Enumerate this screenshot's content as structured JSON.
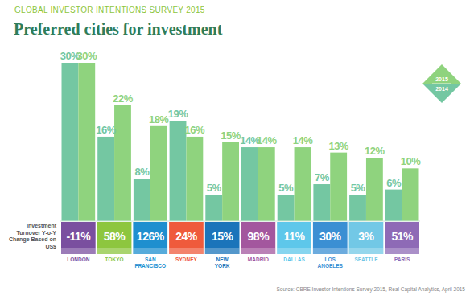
{
  "chart_data": {
    "type": "bar",
    "title": "Preferred cities for investment",
    "subtitle": "GLOBAL INVESTOR INTENTIONS SURVEY 2015",
    "source": "Source: CBRE Investor Intentions Survey 2015, Real Capital Analytics, April 2015",
    "categories": [
      "LONDON",
      "TOKYO",
      "SAN FRANCISCO",
      "SYDNEY",
      "NEW YORK",
      "MADRID",
      "DALLAS",
      "LOS ANGELES",
      "SEATTLE",
      "PARIS"
    ],
    "series": [
      {
        "name": "2014",
        "color": "#74c7a2",
        "values": [
          30,
          16,
          8,
          19,
          5,
          14,
          5,
          7,
          5,
          6
        ],
        "value_labels": [
          "30%",
          "16%",
          "8%",
          "19%",
          "5%",
          "14%",
          "5%",
          "7%",
          "5%",
          "6%"
        ]
      },
      {
        "name": "2015",
        "color": "#8fd37e",
        "values": [
          30,
          22,
          18,
          16,
          15,
          14,
          14,
          13,
          12,
          10
        ],
        "value_labels": [
          "30%",
          "22%",
          "18%",
          "16%",
          "15%",
          "14%",
          "14%",
          "13%",
          "12%",
          "10%"
        ]
      }
    ],
    "turnover": {
      "label": "Investment Turnover Y-o-Y Change Based on US$",
      "values": [
        -11,
        58,
        126,
        24,
        15,
        98,
        11,
        30,
        3,
        51
      ],
      "value_labels": [
        "-11%",
        "58%",
        "126%",
        "24%",
        "15%",
        "98%",
        "11%",
        "30%",
        "3%",
        "51%"
      ],
      "colors": [
        "#7a4f9f",
        "#8dc63f",
        "#1e8fcf",
        "#ef5a3c",
        "#1b74ba",
        "#a3579e",
        "#5ec7ea",
        "#3b8fd3",
        "#72c8e6",
        "#8e6ab6"
      ]
    },
    "ylim": [
      0,
      30
    ],
    "tick_labels": false,
    "data_labels": true,
    "legend": "upper right",
    "grid": false
  }
}
